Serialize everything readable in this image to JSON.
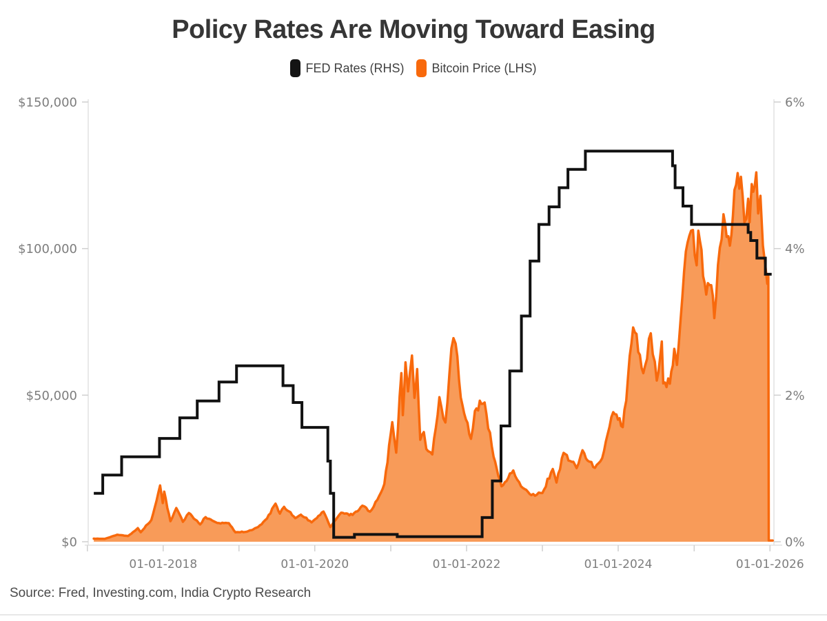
{
  "header": {
    "title": "Policy Rates Are Moving Toward Easing"
  },
  "legend": [
    {
      "label": "FED Rates (RHS)",
      "color": "#141414"
    },
    {
      "label": "Bitcoin Price (LHS)",
      "color": "#f8690c"
    }
  ],
  "footer": {
    "source": "Source: Fred, Investing.com, India Crypto Research"
  },
  "colors": {
    "fed_line": "#111111",
    "btc_stroke": "#f8690c",
    "btc_fill": "#f89b59",
    "axis_line": "#e2e2e2",
    "tick_mark": "#cfcfcf",
    "tick_label": "#7d7d7d"
  },
  "chart_data": {
    "type": "combo",
    "title": "Policy Rates Are Moving Toward Easing",
    "source": "Source: Fred, Investing.com, India Crypto Research",
    "x_axis": {
      "type": "date",
      "range": [
        "2017-01-05",
        "2026-01-20"
      ],
      "year_ticks": [
        2017,
        2018,
        2019,
        2020,
        2021,
        2022,
        2023,
        2024,
        2025,
        2026
      ],
      "label_years": [
        2018,
        2020,
        2022,
        2024,
        2026
      ],
      "labels": [
        "01-01-2018",
        "01-01-2020",
        "01-01-2022",
        "01-01-2024",
        "01-01-2026"
      ]
    },
    "y_left": {
      "name": "Bitcoin Price (LHS)",
      "range": [
        0,
        150000
      ],
      "ticks": [
        0,
        50000,
        100000,
        150000
      ],
      "labels": [
        "$0",
        "$50,000",
        "$100,000",
        "$150,000"
      ]
    },
    "y_right": {
      "name": "FED Rates (RHS)",
      "range": [
        0,
        6
      ],
      "ticks": [
        0,
        2,
        4,
        6
      ],
      "labels": [
        "0%",
        "2%",
        "4%",
        "6%"
      ]
    },
    "series": [
      {
        "name": "Bitcoin Price (LHS)",
        "type": "area",
        "axis": "left",
        "unit": "USD",
        "points": [
          [
            "2017-02-01",
            1050
          ],
          [
            "2017-03-25",
            970
          ],
          [
            "2017-05-25",
            2400
          ],
          [
            "2017-07-16",
            1950
          ],
          [
            "2017-09-01",
            4650
          ],
          [
            "2017-09-15",
            3250
          ],
          [
            "2017-11-05",
            7400
          ],
          [
            "2017-12-17",
            19200
          ],
          [
            "2017-12-30",
            13200
          ],
          [
            "2018-01-06",
            17100
          ],
          [
            "2018-02-05",
            7000
          ],
          [
            "2018-03-05",
            11500
          ],
          [
            "2018-04-06",
            6800
          ],
          [
            "2018-05-05",
            9800
          ],
          [
            "2018-06-28",
            5900
          ],
          [
            "2018-07-24",
            8400
          ],
          [
            "2018-09-19",
            6400
          ],
          [
            "2018-11-13",
            6350
          ],
          [
            "2018-12-15",
            3200
          ],
          [
            "2019-02-07",
            3400
          ],
          [
            "2019-04-03",
            5000
          ],
          [
            "2019-05-16",
            7900
          ],
          [
            "2019-06-26",
            13000
          ],
          [
            "2019-07-17",
            9600
          ],
          [
            "2019-08-06",
            11900
          ],
          [
            "2019-09-29",
            8050
          ],
          [
            "2019-10-26",
            9250
          ],
          [
            "2019-12-17",
            6600
          ],
          [
            "2020-02-12",
            10300
          ],
          [
            "2020-03-16",
            5000
          ],
          [
            "2020-05-07",
            9900
          ],
          [
            "2020-07-01",
            9150
          ],
          [
            "2020-08-17",
            12300
          ],
          [
            "2020-09-23",
            10250
          ],
          [
            "2020-11-06",
            15600
          ],
          [
            "2020-12-01",
            19700
          ],
          [
            "2021-01-08",
            40800
          ],
          [
            "2021-01-27",
            30400
          ],
          [
            "2021-02-21",
            57500
          ],
          [
            "2021-02-28",
            43200
          ],
          [
            "2021-03-13",
            61200
          ],
          [
            "2021-03-25",
            51300
          ],
          [
            "2021-04-13",
            63500
          ],
          [
            "2021-04-25",
            49100
          ],
          [
            "2021-05-08",
            58900
          ],
          [
            "2021-05-23",
            34800
          ],
          [
            "2021-06-09",
            37400
          ],
          [
            "2021-06-21",
            31600
          ],
          [
            "2021-07-20",
            29800
          ],
          [
            "2021-08-23",
            49300
          ],
          [
            "2021-09-21",
            40700
          ],
          [
            "2021-10-20",
            66000
          ],
          [
            "2021-11-09",
            67600
          ],
          [
            "2021-12-04",
            49200
          ],
          [
            "2022-01-22",
            35100
          ],
          [
            "2022-02-10",
            44600
          ],
          [
            "2022-03-29",
            47500
          ],
          [
            "2022-05-11",
            29000
          ],
          [
            "2022-06-18",
            18900
          ],
          [
            "2022-08-14",
            24300
          ],
          [
            "2022-09-20",
            18900
          ],
          [
            "2022-11-09",
            15900
          ],
          [
            "2023-01-01",
            16600
          ],
          [
            "2023-02-20",
            24800
          ],
          [
            "2023-03-10",
            20200
          ],
          [
            "2023-04-13",
            30300
          ],
          [
            "2023-06-15",
            25100
          ],
          [
            "2023-07-13",
            31200
          ],
          [
            "2023-09-11",
            25200
          ],
          [
            "2023-10-16",
            28500
          ],
          [
            "2023-12-08",
            44200
          ],
          [
            "2024-01-23",
            39100
          ],
          [
            "2024-03-13",
            73100
          ],
          [
            "2024-05-01",
            57500
          ],
          [
            "2024-06-06",
            71100
          ],
          [
            "2024-07-05",
            55000
          ],
          [
            "2024-07-29",
            68300
          ],
          [
            "2024-08-05",
            54000
          ],
          [
            "2024-09-06",
            53900
          ],
          [
            "2024-09-27",
            65800
          ],
          [
            "2024-10-10",
            60300
          ],
          [
            "2024-11-22",
            99000
          ],
          [
            "2024-12-17",
            106100
          ],
          [
            "2025-01-13",
            94300
          ],
          [
            "2025-01-21",
            106100
          ],
          [
            "2025-02-28",
            84300
          ],
          [
            "2025-03-24",
            87500
          ],
          [
            "2025-04-08",
            76300
          ],
          [
            "2025-05-22",
            111700
          ],
          [
            "2025-06-22",
            101000
          ],
          [
            "2025-07-14",
            120000
          ],
          [
            "2025-08-14",
            124500
          ],
          [
            "2025-08-31",
            109000
          ],
          [
            "2025-09-18",
            117000
          ],
          [
            "2025-09-25",
            109000
          ],
          [
            "2025-10-05",
            122000
          ],
          [
            "2025-10-27",
            126000
          ],
          [
            "2025-11-05",
            112000
          ],
          [
            "2025-11-16",
            118000
          ],
          [
            "2025-11-28",
            101000
          ],
          [
            "2025-12-10",
            94000
          ],
          [
            "2025-12-19",
            88000
          ],
          [
            "2025-12-24",
            90500
          ],
          [
            "2025-12-26",
            400
          ],
          [
            "2026-01-14",
            400
          ]
        ]
      },
      {
        "name": "FED Rates (RHS)",
        "type": "step-line",
        "axis": "right",
        "unit": "%",
        "points": [
          [
            "2017-02-01",
            0.66
          ],
          [
            "2017-03-16",
            0.91
          ],
          [
            "2017-06-15",
            1.16
          ],
          [
            "2017-12-14",
            1.41
          ],
          [
            "2018-03-22",
            1.69
          ],
          [
            "2018-06-14",
            1.92
          ],
          [
            "2018-09-27",
            2.18
          ],
          [
            "2018-12-20",
            2.4
          ],
          [
            "2019-08-01",
            2.13
          ],
          [
            "2019-09-19",
            1.9
          ],
          [
            "2019-10-31",
            1.56
          ],
          [
            "2020-03-04",
            1.1
          ],
          [
            "2020-03-16",
            0.66
          ],
          [
            "2020-04-01",
            0.06
          ],
          [
            "2020-07-10",
            0.1
          ],
          [
            "2021-02-01",
            0.07
          ],
          [
            "2022-03-17",
            0.33
          ],
          [
            "2022-05-05",
            0.83
          ],
          [
            "2022-06-16",
            1.58
          ],
          [
            "2022-07-28",
            2.33
          ],
          [
            "2022-09-22",
            3.08
          ],
          [
            "2022-11-03",
            3.83
          ],
          [
            "2022-12-15",
            4.33
          ],
          [
            "2023-02-02",
            4.57
          ],
          [
            "2023-03-23",
            4.83
          ],
          [
            "2023-05-04",
            5.08
          ],
          [
            "2023-07-27",
            5.33
          ],
          [
            "2024-09-19",
            5.13
          ],
          [
            "2024-10-01",
            4.83
          ],
          [
            "2024-11-08",
            4.58
          ],
          [
            "2024-12-19",
            4.33
          ],
          [
            "2025-09-18",
            4.22
          ],
          [
            "2025-09-30",
            4.11
          ],
          [
            "2025-10-30",
            3.87
          ],
          [
            "2025-12-10",
            3.65
          ],
          [
            "2026-01-09",
            3.65
          ]
        ]
      }
    ]
  }
}
